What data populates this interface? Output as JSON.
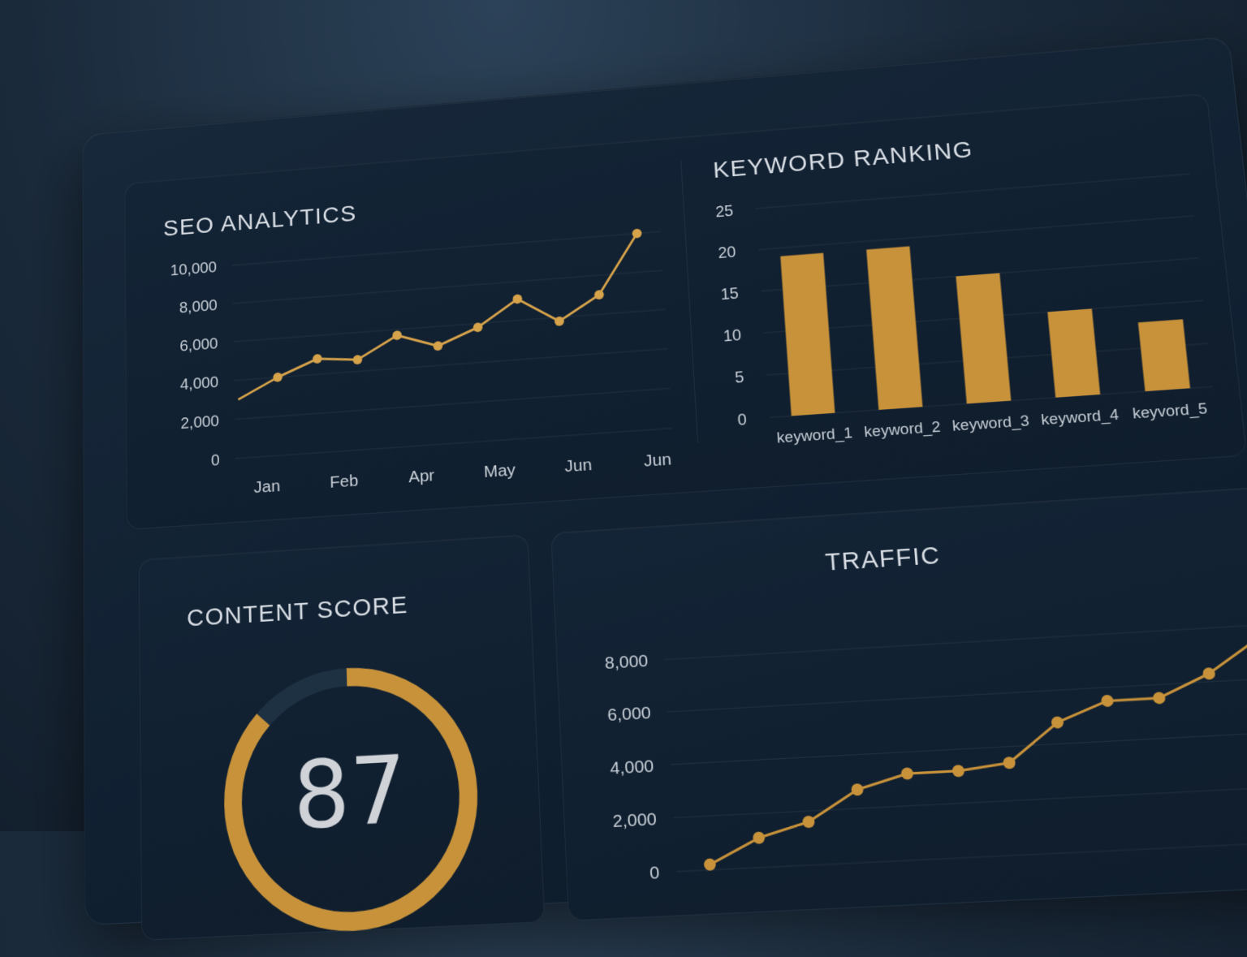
{
  "panels": {
    "seo": {
      "title": "SEO ANALYTICS"
    },
    "keyword": {
      "title": "KEYWORD RANKING"
    },
    "score": {
      "title": "CONTENT SCORE",
      "value": "87",
      "fraction": 0.87
    },
    "traffic": {
      "title": "TRAFFIC"
    }
  },
  "colors": {
    "accent": "#d6a24a",
    "accent_dark": "#c8923a",
    "track": "#1e3142",
    "text": "#c9d0d8"
  },
  "chart_data": [
    {
      "id": "seo",
      "type": "line",
      "title": "SEO ANALYTICS",
      "x_ticks": [
        "Jan",
        "Feb",
        "Apr",
        "May",
        "Jun",
        "Jun"
      ],
      "y_ticks": [
        "0",
        "2,000",
        "4,000",
        "6,000",
        "8,000",
        "10,000"
      ],
      "ylim": [
        0,
        10000
      ],
      "grid": true,
      "series": [
        {
          "values": [
            3000,
            4000,
            4800,
            4600,
            5700,
            5000,
            5800,
            7100,
            5800,
            7000,
            10000
          ]
        }
      ]
    },
    {
      "id": "keyword",
      "type": "bar",
      "title": "KEYWORD RANKING",
      "categories": [
        "keyword_1",
        "keyword_2",
        "keyword_3",
        "keyword_4",
        "keyvord_5"
      ],
      "values": [
        19,
        19,
        15,
        10,
        8
      ],
      "y_ticks": [
        "0",
        "5",
        "10",
        "15",
        "20",
        "25"
      ],
      "ylim": [
        0,
        25
      ],
      "grid": true
    },
    {
      "id": "traffic",
      "type": "line",
      "title": "TRAFFIC",
      "y_ticks": [
        "0",
        "2,000",
        "4,000",
        "6,000",
        "8,000"
      ],
      "ylim": [
        0,
        9000
      ],
      "grid": true,
      "series": [
        {
          "values": [
            200,
            1100,
            1600,
            2700,
            3200,
            3200,
            3400,
            4800,
            5500,
            5500,
            6300,
            7500
          ]
        }
      ]
    }
  ]
}
